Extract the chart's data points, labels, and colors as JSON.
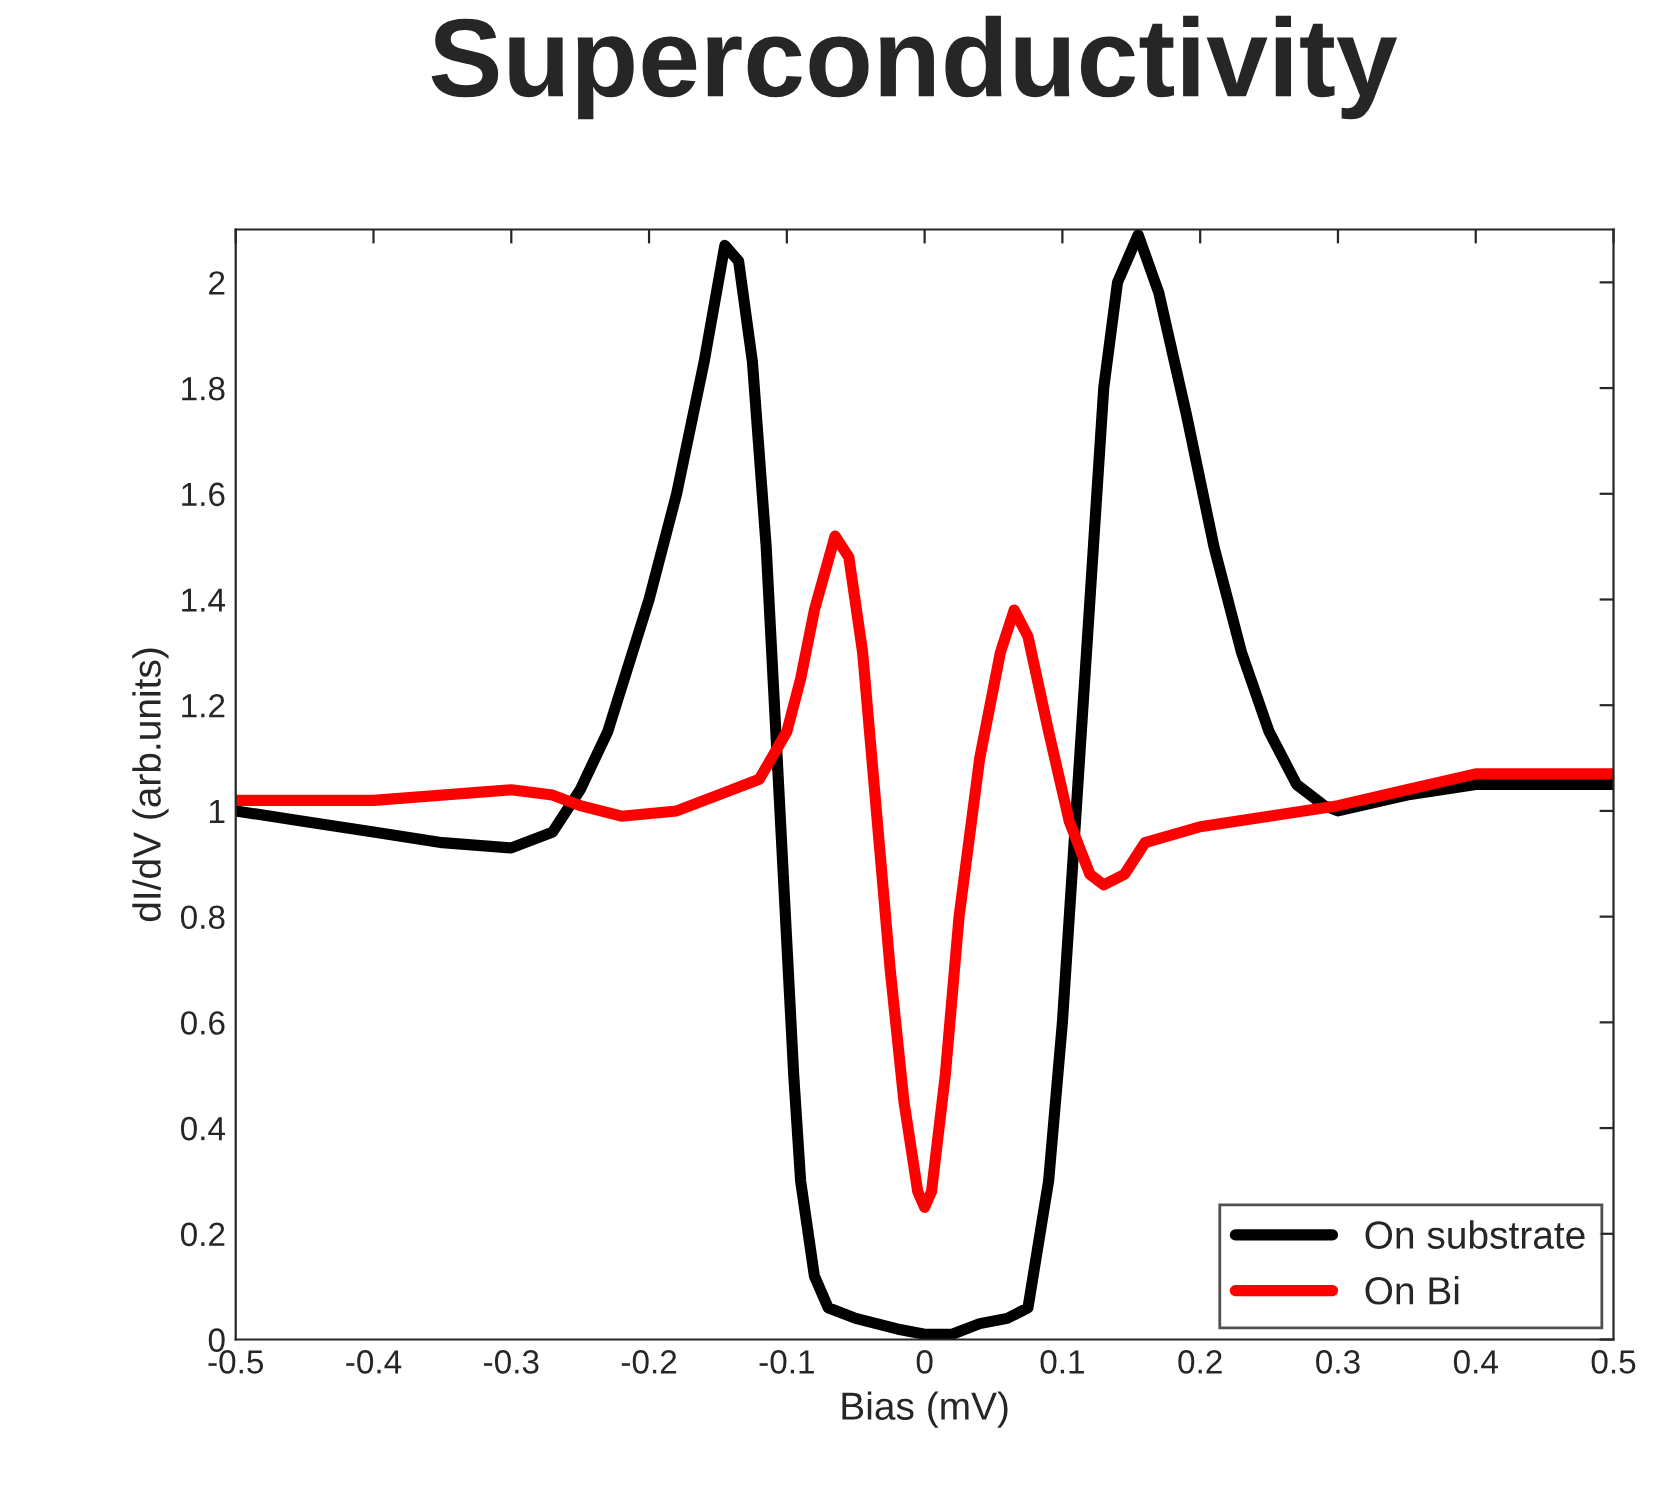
{
  "chart_data": {
    "type": "line",
    "title": "Superconductivity",
    "xlabel": "Bias (mV)",
    "ylabel": "dI/dV (arb.units)",
    "xlim": [
      -0.5,
      0.5
    ],
    "ylim": [
      0,
      2.1
    ],
    "xticks": [
      -0.5,
      -0.4,
      -0.3,
      -0.2,
      -0.1,
      0,
      0.1,
      0.2,
      0.3,
      0.4,
      0.5
    ],
    "yticks": [
      0,
      0.2,
      0.4,
      0.6,
      0.8,
      1,
      1.2,
      1.4,
      1.6,
      1.8,
      2
    ],
    "grid": false,
    "legend": "bottom right",
    "line_style": "solid",
    "marker": "none",
    "series": [
      {
        "name": "On substrate",
        "color": "#000000",
        "x": [
          -0.5,
          -0.45,
          -0.4,
          -0.35,
          -0.3,
          -0.27,
          -0.25,
          -0.23,
          -0.2,
          -0.18,
          -0.16,
          -0.145,
          -0.135,
          -0.125,
          -0.115,
          -0.105,
          -0.095,
          -0.09,
          -0.08,
          -0.07,
          -0.05,
          -0.02,
          0,
          0.02,
          0.04,
          0.06,
          0.075,
          0.09,
          0.1,
          0.11,
          0.12,
          0.13,
          0.14,
          0.155,
          0.17,
          0.19,
          0.21,
          0.23,
          0.25,
          0.27,
          0.29,
          0.3,
          0.35,
          0.4,
          0.45,
          0.5
        ],
        "values": [
          1.0,
          0.98,
          0.96,
          0.94,
          0.93,
          0.96,
          1.04,
          1.15,
          1.4,
          1.6,
          1.85,
          2.07,
          2.04,
          1.85,
          1.5,
          1.0,
          0.5,
          0.3,
          0.12,
          0.06,
          0.04,
          0.02,
          0.01,
          0.01,
          0.03,
          0.04,
          0.06,
          0.3,
          0.6,
          1.0,
          1.4,
          1.8,
          2.0,
          2.09,
          1.98,
          1.75,
          1.5,
          1.3,
          1.15,
          1.05,
          1.01,
          1.0,
          1.03,
          1.05,
          1.05,
          1.05
        ]
      },
      {
        "name": "On Bi",
        "color": "#ff0000",
        "x": [
          -0.5,
          -0.4,
          -0.3,
          -0.27,
          -0.25,
          -0.22,
          -0.18,
          -0.15,
          -0.12,
          -0.1,
          -0.09,
          -0.08,
          -0.065,
          -0.055,
          -0.045,
          -0.035,
          -0.025,
          -0.015,
          -0.005,
          0,
          0.005,
          0.015,
          0.025,
          0.04,
          0.055,
          0.065,
          0.075,
          0.09,
          0.105,
          0.12,
          0.13,
          0.145,
          0.16,
          0.2,
          0.25,
          0.3,
          0.35,
          0.4,
          0.45,
          0.5
        ],
        "values": [
          1.02,
          1.02,
          1.04,
          1.03,
          1.01,
          0.99,
          1.0,
          1.03,
          1.06,
          1.15,
          1.25,
          1.38,
          1.52,
          1.48,
          1.3,
          1.0,
          0.7,
          0.45,
          0.28,
          0.25,
          0.28,
          0.5,
          0.8,
          1.1,
          1.3,
          1.38,
          1.33,
          1.15,
          0.98,
          0.88,
          0.86,
          0.88,
          0.94,
          0.97,
          0.99,
          1.01,
          1.04,
          1.07,
          1.07,
          1.07
        ]
      }
    ]
  }
}
